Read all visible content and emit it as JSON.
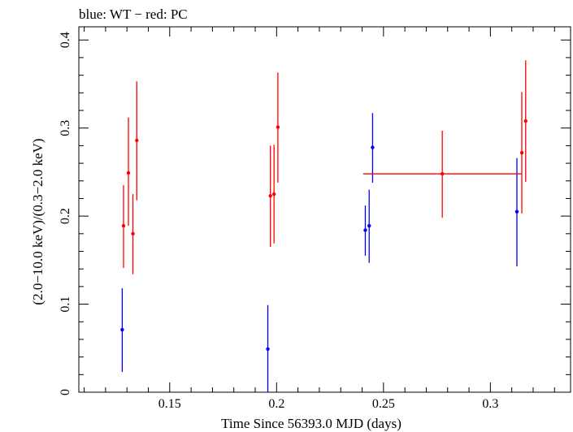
{
  "chart_data": {
    "type": "scatter",
    "title": "blue: WT − red: PC",
    "xlabel": "Time Since 56393.0 MJD (days)",
    "ylabel": "(2.0−10.0 keV)/(0.3−2.0 keV)",
    "xlim": [
      0.1075,
      0.3375
    ],
    "ylim": [
      0,
      0.415
    ],
    "x_ticks": [
      {
        "value": 0.15,
        "label": "0.15"
      },
      {
        "value": 0.2,
        "label": "0.2"
      },
      {
        "value": 0.25,
        "label": "0.25"
      },
      {
        "value": 0.3,
        "label": "0.3"
      }
    ],
    "y_ticks": [
      {
        "value": 0,
        "label": "0"
      },
      {
        "value": 0.1,
        "label": "0.1"
      },
      {
        "value": 0.2,
        "label": "0.2"
      },
      {
        "value": 0.3,
        "label": "0.3"
      },
      {
        "value": 0.4,
        "label": "0.4"
      }
    ],
    "grid": false,
    "series": [
      {
        "color": "#0000ff",
        "points": [
          {
            "x": 0.1278,
            "y": 0.071,
            "ylo": 0.023,
            "yhi": 0.118
          },
          {
            "x": 0.1959,
            "y": 0.049,
            "ylo": 0.0,
            "yhi": 0.099
          },
          {
            "x": 0.2415,
            "y": 0.184,
            "ylo": 0.155,
            "yhi": 0.212
          },
          {
            "x": 0.2433,
            "y": 0.189,
            "ylo": 0.147,
            "yhi": 0.23
          },
          {
            "x": 0.2449,
            "y": 0.278,
            "ylo": 0.238,
            "yhi": 0.317
          },
          {
            "x": 0.3124,
            "y": 0.205,
            "ylo": 0.143,
            "yhi": 0.266
          }
        ]
      },
      {
        "color": "#ff0000",
        "points": [
          {
            "x": 0.1284,
            "y": 0.189,
            "ylo": 0.141,
            "yhi": 0.235
          },
          {
            "x": 0.1307,
            "y": 0.249,
            "ylo": 0.189,
            "yhi": 0.312
          },
          {
            "x": 0.1328,
            "y": 0.18,
            "ylo": 0.134,
            "yhi": 0.225
          },
          {
            "x": 0.1346,
            "y": 0.286,
            "ylo": 0.218,
            "yhi": 0.353
          },
          {
            "x": 0.1971,
            "y": 0.223,
            "ylo": 0.165,
            "yhi": 0.28
          },
          {
            "x": 0.1988,
            "y": 0.225,
            "ylo": 0.169,
            "yhi": 0.281
          },
          {
            "x": 0.2006,
            "y": 0.301,
            "ylo": 0.238,
            "yhi": 0.363
          },
          {
            "x": 0.2775,
            "y": 0.248,
            "ylo": 0.198,
            "yhi": 0.297,
            "xlo": 0.2405,
            "xhi": 0.3145
          },
          {
            "x": 0.3147,
            "y": 0.272,
            "ylo": 0.203,
            "yhi": 0.341
          },
          {
            "x": 0.3165,
            "y": 0.308,
            "ylo": 0.239,
            "yhi": 0.377
          }
        ]
      }
    ]
  }
}
